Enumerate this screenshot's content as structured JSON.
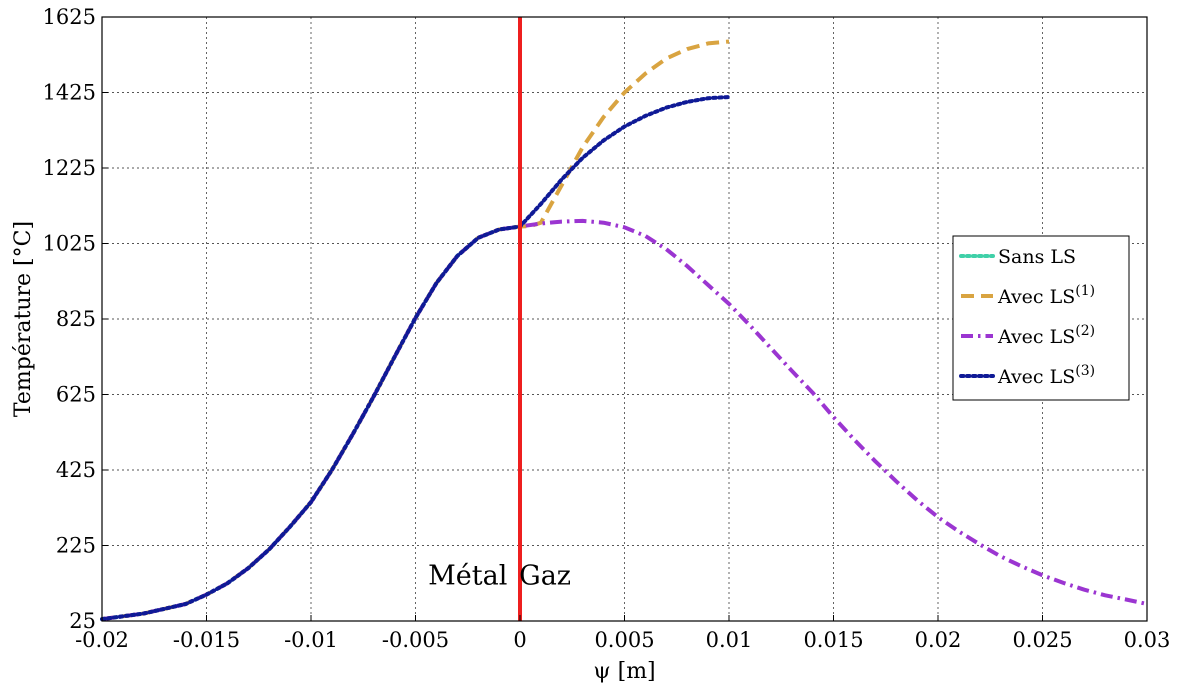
{
  "chart_data": {
    "type": "line",
    "title": "",
    "xlabel": "ψ [m]",
    "ylabel": "Température [°C]",
    "xlim": [
      -0.02,
      0.03
    ],
    "ylim": [
      25,
      1625
    ],
    "grid": true,
    "grid_style": "dotted",
    "x_ticks": [
      -0.02,
      -0.015,
      -0.01,
      -0.005,
      0,
      0.005,
      0.01,
      0.015,
      0.02,
      0.025,
      0.03
    ],
    "x_tick_labels": [
      "-0.02",
      "-0.015",
      "-0.01",
      "-0.005",
      "0",
      "0.005",
      "0.01",
      "0.015",
      "0.02",
      "0.025",
      "0.03"
    ],
    "y_ticks": [
      25,
      225,
      425,
      625,
      825,
      1025,
      1225,
      1425,
      1625
    ],
    "y_tick_labels": [
      "25",
      "225",
      "425",
      "625",
      "825",
      "1025",
      "1225",
      "1425",
      "1625"
    ],
    "legend_position": "right",
    "series": [
      {
        "name": "Sans LS",
        "sup": "",
        "color": "#3fd0a8",
        "dash": "dotted",
        "x": [
          -0.02,
          -0.018,
          -0.016,
          -0.015,
          -0.014,
          -0.013,
          -0.012,
          -0.011,
          -0.01,
          -0.009,
          -0.008,
          -0.007,
          -0.006,
          -0.005,
          -0.004,
          -0.003,
          -0.002,
          -0.001,
          0
        ],
        "y": [
          30,
          45,
          70,
          95,
          125,
          165,
          215,
          275,
          340,
          425,
          520,
          620,
          725,
          828,
          920,
          992,
          1040,
          1062,
          1070
        ]
      },
      {
        "name": "Avec LS",
        "sup": "(1)",
        "color": "#d9a441",
        "dash": "dashed",
        "x": [
          -0.02,
          -0.018,
          -0.016,
          -0.015,
          -0.014,
          -0.013,
          -0.012,
          -0.011,
          -0.01,
          -0.009,
          -0.008,
          -0.007,
          -0.006,
          -0.005,
          -0.004,
          -0.003,
          -0.002,
          -0.001,
          0,
          0.0005,
          0.001,
          0.002,
          0.003,
          0.004,
          0.005,
          0.006,
          0.007,
          0.008,
          0.009,
          0.01
        ],
        "y": [
          30,
          45,
          70,
          95,
          125,
          165,
          215,
          275,
          340,
          425,
          520,
          620,
          725,
          828,
          920,
          992,
          1040,
          1062,
          1070,
          1071,
          1080,
          1180,
          1280,
          1360,
          1425,
          1475,
          1515,
          1540,
          1555,
          1560
        ]
      },
      {
        "name": "Avec LS",
        "sup": "(2)",
        "color": "#9b35d1",
        "dash": "dashdot",
        "x": [
          -0.02,
          -0.018,
          -0.016,
          -0.015,
          -0.014,
          -0.013,
          -0.012,
          -0.011,
          -0.01,
          -0.009,
          -0.008,
          -0.007,
          -0.006,
          -0.005,
          -0.004,
          -0.003,
          -0.002,
          -0.001,
          0,
          0.001,
          0.002,
          0.003,
          0.004,
          0.005,
          0.006,
          0.007,
          0.008,
          0.009,
          0.01,
          0.011,
          0.012,
          0.013,
          0.014,
          0.015,
          0.016,
          0.017,
          0.018,
          0.019,
          0.02,
          0.021,
          0.022,
          0.023,
          0.024,
          0.025,
          0.026,
          0.027,
          0.028,
          0.029,
          0.03
        ],
        "y": [
          30,
          45,
          70,
          95,
          125,
          165,
          215,
          275,
          340,
          425,
          520,
          620,
          725,
          828,
          920,
          992,
          1040,
          1062,
          1070,
          1078,
          1083,
          1085,
          1080,
          1068,
          1045,
          1010,
          965,
          915,
          865,
          808,
          748,
          688,
          630,
          565,
          505,
          448,
          395,
          345,
          300,
          262,
          228,
          196,
          170,
          146,
          126,
          108,
          93,
          82,
          70
        ]
      },
      {
        "name": "Avec LS",
        "sup": "(3)",
        "color": "#0f1a96",
        "dash": "dotted",
        "x": [
          -0.02,
          -0.018,
          -0.016,
          -0.015,
          -0.014,
          -0.013,
          -0.012,
          -0.011,
          -0.01,
          -0.009,
          -0.008,
          -0.007,
          -0.006,
          -0.005,
          -0.004,
          -0.003,
          -0.002,
          -0.001,
          0,
          0.001,
          0.002,
          0.003,
          0.004,
          0.005,
          0.006,
          0.007,
          0.008,
          0.009,
          0.01
        ],
        "y": [
          30,
          45,
          70,
          95,
          125,
          165,
          215,
          275,
          340,
          425,
          520,
          620,
          725,
          828,
          920,
          992,
          1040,
          1062,
          1070,
          1130,
          1195,
          1252,
          1298,
          1335,
          1363,
          1385,
          1400,
          1410,
          1413
        ]
      }
    ],
    "vertical_line": {
      "x": 0,
      "color": "#ee1f1f"
    },
    "annotations": [
      {
        "text": "Métal",
        "x": -0.0025,
        "y": 122
      },
      {
        "text": "Gaz",
        "x": 0.0012,
        "y": 122
      }
    ]
  }
}
